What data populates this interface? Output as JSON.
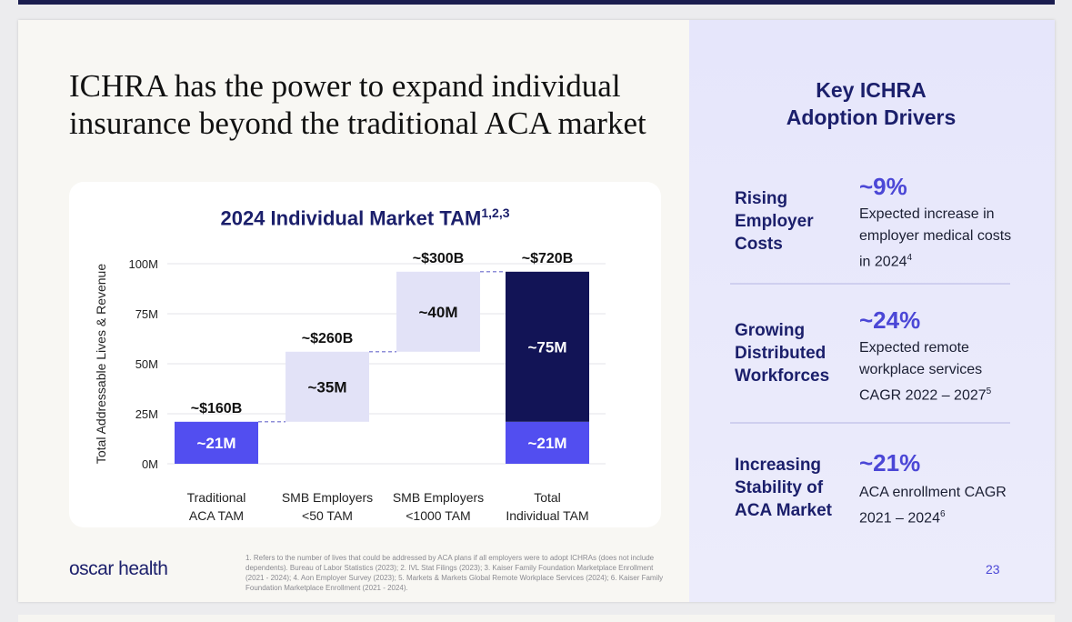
{
  "headline": "ICHRA has the power to expand individual insurance beyond the traditional ACA market",
  "brand": "oscar health",
  "page_number": "23",
  "colors": {
    "navy": "#1b1f6b",
    "accent": "#4b47d6",
    "dark_bar": "#121456",
    "light_bar": "#e2e2f7",
    "bright_bar": "#524ef0"
  },
  "chart_data": {
    "type": "bar",
    "subtype": "waterfall",
    "title": "2024 Individual Market TAM",
    "title_superscript": "1,2,3",
    "ylabel": "Total Addressable Lives & Revenue",
    "ylim": [
      0,
      100
    ],
    "yticks": [
      "0M",
      "25M",
      "50M",
      "75M",
      "100M"
    ],
    "categories": [
      "Traditional\nACA TAM",
      "SMB Employers\n<50 TAM",
      "SMB Employers\n<1000 TAM",
      "Total\nIndividual TAM"
    ],
    "segments": [
      {
        "category": 0,
        "base": 0,
        "value": 21,
        "label": "~21M",
        "style": "bright"
      },
      {
        "category": 1,
        "base": 21,
        "value": 35,
        "label": "~35M",
        "style": "light"
      },
      {
        "category": 2,
        "base": 56,
        "value": 40,
        "label": "~40M",
        "style": "light"
      },
      {
        "category": 3,
        "base": 0,
        "value": 21,
        "label": "~21M",
        "style": "bright"
      },
      {
        "category": 3,
        "base": 21,
        "value": 75,
        "label": "~75M",
        "style": "dark"
      }
    ],
    "revenue_labels": [
      "~$160B",
      "~$260B",
      "~$300B",
      "~$720B"
    ]
  },
  "drivers_title": "Key ICHRA Adoption Drivers",
  "drivers": [
    {
      "label": "Rising Employer Costs",
      "stat": "~9%",
      "desc": "Expected increase in employer medical costs in 2024",
      "sup": "4"
    },
    {
      "label": "Growing Distributed Workforces",
      "stat": "~24%",
      "desc": "Expected remote workplace services CAGR 2022 – 2027",
      "sup": "5"
    },
    {
      "label": "Increasing Stability of ACA Market",
      "stat": "~21%",
      "desc": "ACA enrollment CAGR 2021 – 2024",
      "sup": "6"
    }
  ],
  "footnotes": [
    "1.  Refers to the number of lives that could be addressed by ACA plans if all employers were to adopt ICHRAs (does not include dependents). Bureau of Labor Statistics (2023); 2. IVL Stat Filings (2023); 3. Kaiser Family Foundation Marketplace Enrollment (2021 - 2024); 4. Aon Employer Survey (2023); 5. Markets & Markets Global Remote Workplace Services (2024); 6. Kaiser Family Foundation Marketplace Enrollment (2021 - 2024)."
  ]
}
